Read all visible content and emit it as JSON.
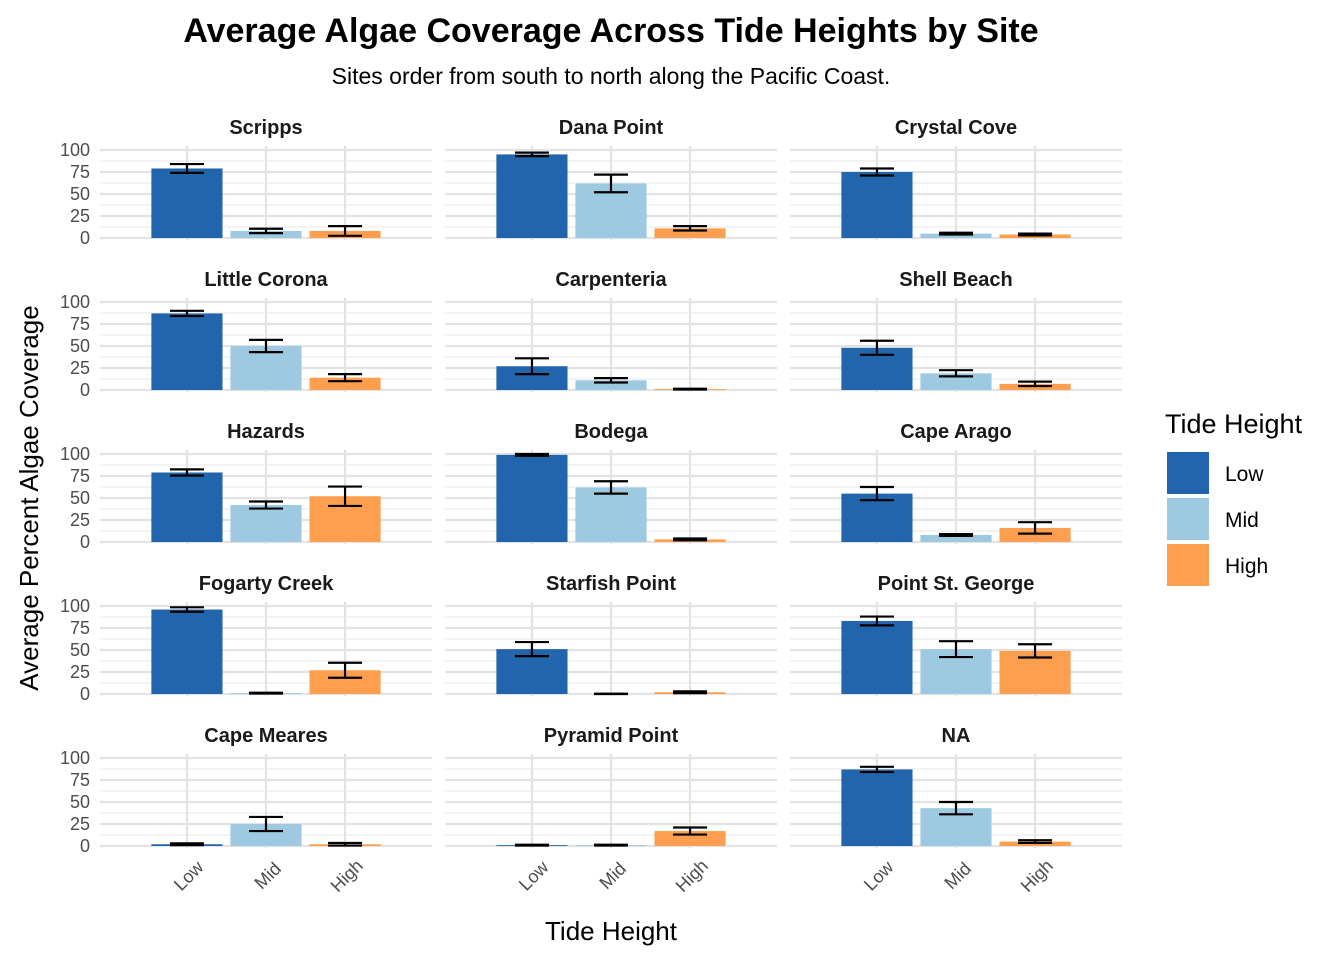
{
  "chart_data": {
    "type": "bar",
    "title": "Average Algae Coverage Across Tide Heights by Site",
    "subtitle": "Sites order from south to north along the Pacific Coast.",
    "xlabel": "Tide Height",
    "ylabel": "Average Percent Algae Coverage",
    "categories": [
      "Low",
      "Mid",
      "High"
    ],
    "ylim": [
      0,
      100
    ],
    "yticks": [
      0,
      25,
      50,
      75,
      100
    ],
    "grid": true,
    "legend": {
      "title": "Tide Height",
      "position": "right",
      "entries": [
        "Low",
        "Mid",
        "High"
      ]
    },
    "colors": {
      "Low": "#2166ac",
      "Mid": "#9ecae1",
      "High": "#fd9f4f"
    },
    "facets": [
      {
        "site": "Scripps",
        "values": [
          79,
          8,
          8
        ],
        "errors": [
          5,
          2.5,
          5.5
        ]
      },
      {
        "site": "Dana Point",
        "values": [
          95,
          62,
          11
        ],
        "errors": [
          2,
          10,
          2.5
        ]
      },
      {
        "site": "Crystal Cove",
        "values": [
          75,
          5,
          4
        ],
        "errors": [
          4,
          1,
          1
        ]
      },
      {
        "site": "Little Corona",
        "values": [
          87,
          50,
          14
        ],
        "errors": [
          3,
          7,
          4
        ]
      },
      {
        "site": "Carpenteria",
        "values": [
          27,
          11,
          1
        ],
        "errors": [
          9,
          2.5,
          0.5
        ]
      },
      {
        "site": "Shell Beach",
        "values": [
          48,
          19,
          7
        ],
        "errors": [
          8,
          3.5,
          2.5
        ]
      },
      {
        "site": "Hazards",
        "values": [
          79,
          42,
          52
        ],
        "errors": [
          3.5,
          4,
          11
        ]
      },
      {
        "site": "Bodega",
        "values": [
          99,
          62,
          3
        ],
        "errors": [
          1,
          7,
          1
        ]
      },
      {
        "site": "Cape Arago",
        "values": [
          55,
          8,
          16
        ],
        "errors": [
          7.5,
          1,
          6.5
        ]
      },
      {
        "site": "Fogarty Creek",
        "values": [
          96,
          1,
          27
        ],
        "errors": [
          2.5,
          0.5,
          8.5
        ]
      },
      {
        "site": "Starfish Point",
        "values": [
          51,
          0,
          2
        ],
        "errors": [
          8,
          0.3,
          1
        ]
      },
      {
        "site": "Point St. George",
        "values": [
          83,
          51,
          49
        ],
        "errors": [
          5,
          9,
          7.5
        ]
      },
      {
        "site": "Cape Meares",
        "values": [
          2,
          25,
          2
        ],
        "errors": [
          1,
          8,
          1.5
        ]
      },
      {
        "site": "Pyramid Point",
        "values": [
          1,
          1,
          17
        ],
        "errors": [
          0.5,
          0.5,
          4
        ]
      },
      {
        "site": "NA",
        "values": [
          87,
          43,
          5
        ],
        "errors": [
          3,
          7,
          1.5
        ]
      }
    ]
  }
}
